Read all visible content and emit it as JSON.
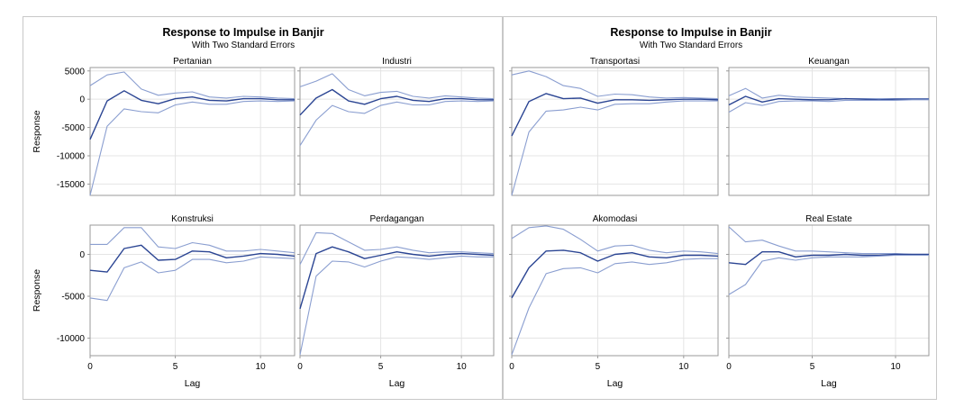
{
  "colors": {
    "response": "#2b4593",
    "bound": "#8a9ed0",
    "grid": "#e4e4e4",
    "frame": "#9a9a9a"
  },
  "figures": [
    {
      "title": "Response to Impulse in Banjir",
      "subtitle": "With Two Standard Errors"
    },
    {
      "title": "Response to Impulse in Banjir",
      "subtitle": "With Two Standard Errors"
    }
  ],
  "x_axis": {
    "label": "Lag",
    "ticks": [
      "0",
      "5",
      "10"
    ]
  },
  "y_axis_label": "Response",
  "chart_data": [
    {
      "type": "line",
      "title": "Pertanian",
      "xlabel": "Lag",
      "ylabel": "Response",
      "xlim": [
        0,
        12
      ],
      "ylim": [
        -17000,
        5600
      ],
      "yticks": [
        5000,
        0,
        -5000,
        -10000,
        -15000
      ],
      "ytick_labels": [
        "5000",
        "0",
        "-5000",
        "-10000",
        "-15000"
      ],
      "x": [
        0,
        1,
        2,
        3,
        4,
        5,
        6,
        7,
        8,
        9,
        10,
        11,
        12
      ],
      "series": [
        {
          "role": "upper",
          "values": [
            2400,
            4300,
            4800,
            1800,
            700,
            1100,
            1300,
            400,
            200,
            500,
            400,
            200,
            100
          ]
        },
        {
          "role": "response",
          "values": [
            -7100,
            -300,
            1500,
            -200,
            -800,
            100,
            400,
            -200,
            -300,
            100,
            100,
            -100,
            -100
          ]
        },
        {
          "role": "lower",
          "values": [
            -17000,
            -4800,
            -1700,
            -2200,
            -2400,
            -1000,
            -500,
            -900,
            -900,
            -400,
            -300,
            -400,
            -300
          ]
        }
      ]
    },
    {
      "type": "line",
      "title": "Industri",
      "xlabel": "Lag",
      "ylabel": "Response",
      "xlim": [
        0,
        12
      ],
      "ylim": [
        -17000,
        5600
      ],
      "x": [
        0,
        1,
        2,
        3,
        4,
        5,
        6,
        7,
        8,
        9,
        10,
        11,
        12
      ],
      "series": [
        {
          "role": "upper",
          "values": [
            2200,
            3200,
            4500,
            1700,
            600,
            1200,
            1400,
            500,
            200,
            600,
            400,
            200,
            100
          ]
        },
        {
          "role": "response",
          "values": [
            -2800,
            200,
            1700,
            -300,
            -900,
            100,
            500,
            -200,
            -400,
            100,
            100,
            -100,
            -100
          ]
        },
        {
          "role": "lower",
          "values": [
            -8200,
            -3700,
            -1100,
            -2200,
            -2500,
            -1100,
            -500,
            -1000,
            -1000,
            -400,
            -300,
            -400,
            -300
          ]
        }
      ]
    },
    {
      "type": "line",
      "title": "Transportasi",
      "xlabel": "Lag",
      "ylabel": "",
      "xlim": [
        0,
        12
      ],
      "ylim": [
        -17000,
        5600
      ],
      "x": [
        0,
        1,
        2,
        3,
        4,
        5,
        6,
        7,
        8,
        9,
        10,
        11,
        12
      ],
      "series": [
        {
          "role": "upper",
          "values": [
            4300,
            5000,
            4000,
            2400,
            1900,
            500,
            900,
            800,
            400,
            200,
            300,
            200,
            100
          ]
        },
        {
          "role": "response",
          "values": [
            -6500,
            -400,
            1000,
            100,
            200,
            -700,
            -100,
            -100,
            -200,
            -100,
            0,
            0,
            -100
          ]
        },
        {
          "role": "lower",
          "values": [
            -17000,
            -5800,
            -2100,
            -1900,
            -1400,
            -1900,
            -900,
            -800,
            -800,
            -500,
            -300,
            -300,
            -300
          ]
        }
      ]
    },
    {
      "type": "line",
      "title": "Keuangan",
      "xlabel": "Lag",
      "ylabel": "",
      "xlim": [
        0,
        12
      ],
      "ylim": [
        -17000,
        5600
      ],
      "x": [
        0,
        1,
        2,
        3,
        4,
        5,
        6,
        7,
        8,
        9,
        10,
        11,
        12
      ],
      "series": [
        {
          "role": "upper",
          "values": [
            600,
            1900,
            200,
            700,
            400,
            300,
            200,
            100,
            100,
            100,
            100,
            100,
            100
          ]
        },
        {
          "role": "response",
          "values": [
            -1000,
            500,
            -500,
            100,
            0,
            -100,
            -100,
            100,
            0,
            -100,
            0,
            0,
            0
          ]
        },
        {
          "role": "lower",
          "values": [
            -2300,
            -600,
            -1100,
            -400,
            -300,
            -300,
            -400,
            -200,
            -200,
            -200,
            -200,
            -100,
            -100
          ]
        }
      ]
    },
    {
      "type": "line",
      "title": "Konstruksi",
      "xlabel": "Lag",
      "ylabel": "Response",
      "xlim": [
        0,
        12
      ],
      "ylim": [
        -12100,
        3500
      ],
      "yticks": [
        0,
        -5000,
        -10000
      ],
      "ytick_labels": [
        "0",
        "-5000",
        "-10000"
      ],
      "x": [
        0,
        1,
        2,
        3,
        4,
        5,
        6,
        7,
        8,
        9,
        10,
        11,
        12
      ],
      "series": [
        {
          "role": "upper",
          "values": [
            1200,
            1200,
            3200,
            3200,
            900,
            700,
            1400,
            1100,
            400,
            400,
            600,
            400,
            200
          ]
        },
        {
          "role": "response",
          "values": [
            -1900,
            -2100,
            700,
            1100,
            -700,
            -600,
            400,
            300,
            -400,
            -200,
            100,
            0,
            -200
          ]
        },
        {
          "role": "lower",
          "values": [
            -5200,
            -5500,
            -1600,
            -900,
            -2200,
            -1900,
            -600,
            -600,
            -1000,
            -800,
            -300,
            -400,
            -500
          ]
        }
      ]
    },
    {
      "type": "line",
      "title": "Perdagangan",
      "xlabel": "Lag",
      "ylabel": "Response",
      "xlim": [
        0,
        12
      ],
      "ylim": [
        -12100,
        3500
      ],
      "x": [
        0,
        1,
        2,
        3,
        4,
        5,
        6,
        7,
        8,
        9,
        10,
        11,
        12
      ],
      "series": [
        {
          "role": "upper",
          "values": [
            -1200,
            2600,
            2500,
            1500,
            500,
            600,
            900,
            500,
            200,
            300,
            300,
            200,
            100
          ]
        },
        {
          "role": "response",
          "values": [
            -6500,
            100,
            900,
            300,
            -500,
            -100,
            300,
            0,
            -200,
            0,
            100,
            0,
            -100
          ]
        },
        {
          "role": "lower",
          "values": [
            -12000,
            -2600,
            -800,
            -900,
            -1500,
            -800,
            -300,
            -400,
            -600,
            -400,
            -200,
            -300,
            -300
          ]
        }
      ]
    },
    {
      "type": "line",
      "title": "Akomodasi",
      "xlabel": "Lag",
      "ylabel": "",
      "xlim": [
        0,
        12
      ],
      "ylim": [
        -12100,
        3500
      ],
      "x": [
        0,
        1,
        2,
        3,
        4,
        5,
        6,
        7,
        8,
        9,
        10,
        11,
        12
      ],
      "series": [
        {
          "role": "upper",
          "values": [
            1900,
            3200,
            3400,
            3000,
            1800,
            400,
            1000,
            1100,
            500,
            200,
            400,
            300,
            100
          ]
        },
        {
          "role": "response",
          "values": [
            -5200,
            -1600,
            400,
            500,
            200,
            -800,
            0,
            200,
            -300,
            -400,
            -100,
            -100,
            -200
          ]
        },
        {
          "role": "lower",
          "values": [
            -12000,
            -6400,
            -2300,
            -1700,
            -1600,
            -2200,
            -1100,
            -900,
            -1200,
            -1000,
            -600,
            -500,
            -500
          ]
        }
      ]
    },
    {
      "type": "line",
      "title": "Real Estate",
      "xlabel": "Lag",
      "ylabel": "",
      "xlim": [
        0,
        12
      ],
      "ylim": [
        -12100,
        3500
      ],
      "x": [
        0,
        1,
        2,
        3,
        4,
        5,
        6,
        7,
        8,
        9,
        10,
        11,
        12
      ],
      "series": [
        {
          "role": "upper",
          "values": [
            3300,
            1500,
            1700,
            1000,
            400,
            400,
            300,
            200,
            100,
            100,
            100,
            0,
            0
          ]
        },
        {
          "role": "response",
          "values": [
            -1000,
            -1200,
            300,
            300,
            -300,
            -100,
            -100,
            0,
            -100,
            -100,
            0,
            0,
            0
          ]
        },
        {
          "role": "lower",
          "values": [
            -4800,
            -3600,
            -800,
            -400,
            -700,
            -400,
            -300,
            -300,
            -300,
            -200,
            -100,
            -100,
            -100
          ]
        }
      ]
    }
  ]
}
